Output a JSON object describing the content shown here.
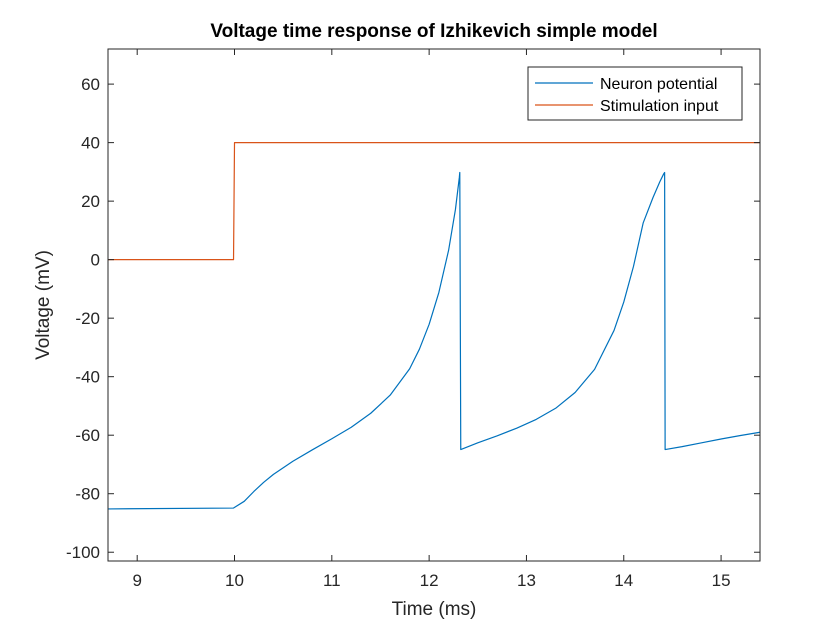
{
  "chart_data": {
    "type": "line",
    "title": "Voltage time response of Izhikevich simple model",
    "xlabel": "Time (ms)",
    "ylabel": "Voltage (mV)",
    "xlim": [
      8.7,
      15.4
    ],
    "ylim": [
      -103,
      72
    ],
    "xticks": [
      9,
      10,
      11,
      12,
      13,
      14,
      15
    ],
    "yticks": [
      -100,
      -80,
      -60,
      -40,
      -20,
      0,
      20,
      40,
      60
    ],
    "xtick_labels": [
      "9",
      "10",
      "11",
      "12",
      "13",
      "14",
      "15"
    ],
    "ytick_labels": [
      "-100",
      "-80",
      "-60",
      "-40",
      "-20",
      "0",
      "20",
      "40",
      "60"
    ],
    "grid": false,
    "legend_position": "top-right",
    "series": [
      {
        "name": "Neuron potential",
        "color": "#0072BD",
        "x": [
          8.7,
          9.99,
          10.1,
          10.2,
          10.3,
          10.4,
          10.6,
          10.8,
          11.0,
          11.2,
          11.4,
          11.6,
          11.8,
          11.9,
          12.0,
          12.1,
          12.2,
          12.27,
          12.31,
          12.315,
          12.325,
          12.5,
          12.7,
          12.9,
          13.1,
          13.3,
          13.5,
          13.7,
          13.9,
          14.0,
          14.1,
          14.2,
          14.3,
          14.37,
          14.41,
          14.42,
          14.425,
          14.6,
          14.8,
          15.0,
          15.2,
          15.4
        ],
        "y": [
          -85.2,
          -84.9,
          -82.6,
          -79.2,
          -76.1,
          -73.4,
          -68.9,
          -65.0,
          -61.2,
          -57.3,
          -52.5,
          -46.3,
          -37.3,
          -30.6,
          -22.1,
          -11.2,
          3.2,
          17.1,
          28.0,
          29.8,
          -64.9,
          -62.6,
          -60.2,
          -57.6,
          -54.6,
          -50.8,
          -45.4,
          -37.5,
          -24.2,
          -14.5,
          -2.3,
          12.6,
          21.2,
          26.6,
          29.3,
          29.8,
          -64.9,
          -63.9,
          -62.6,
          -61.3,
          -60.1,
          -59.0
        ]
      },
      {
        "name": "Stimulation input",
        "color": "#D95319",
        "x": [
          8.7,
          9.99,
          10.0,
          15.4
        ],
        "y": [
          0,
          0,
          40,
          40
        ]
      }
    ]
  }
}
